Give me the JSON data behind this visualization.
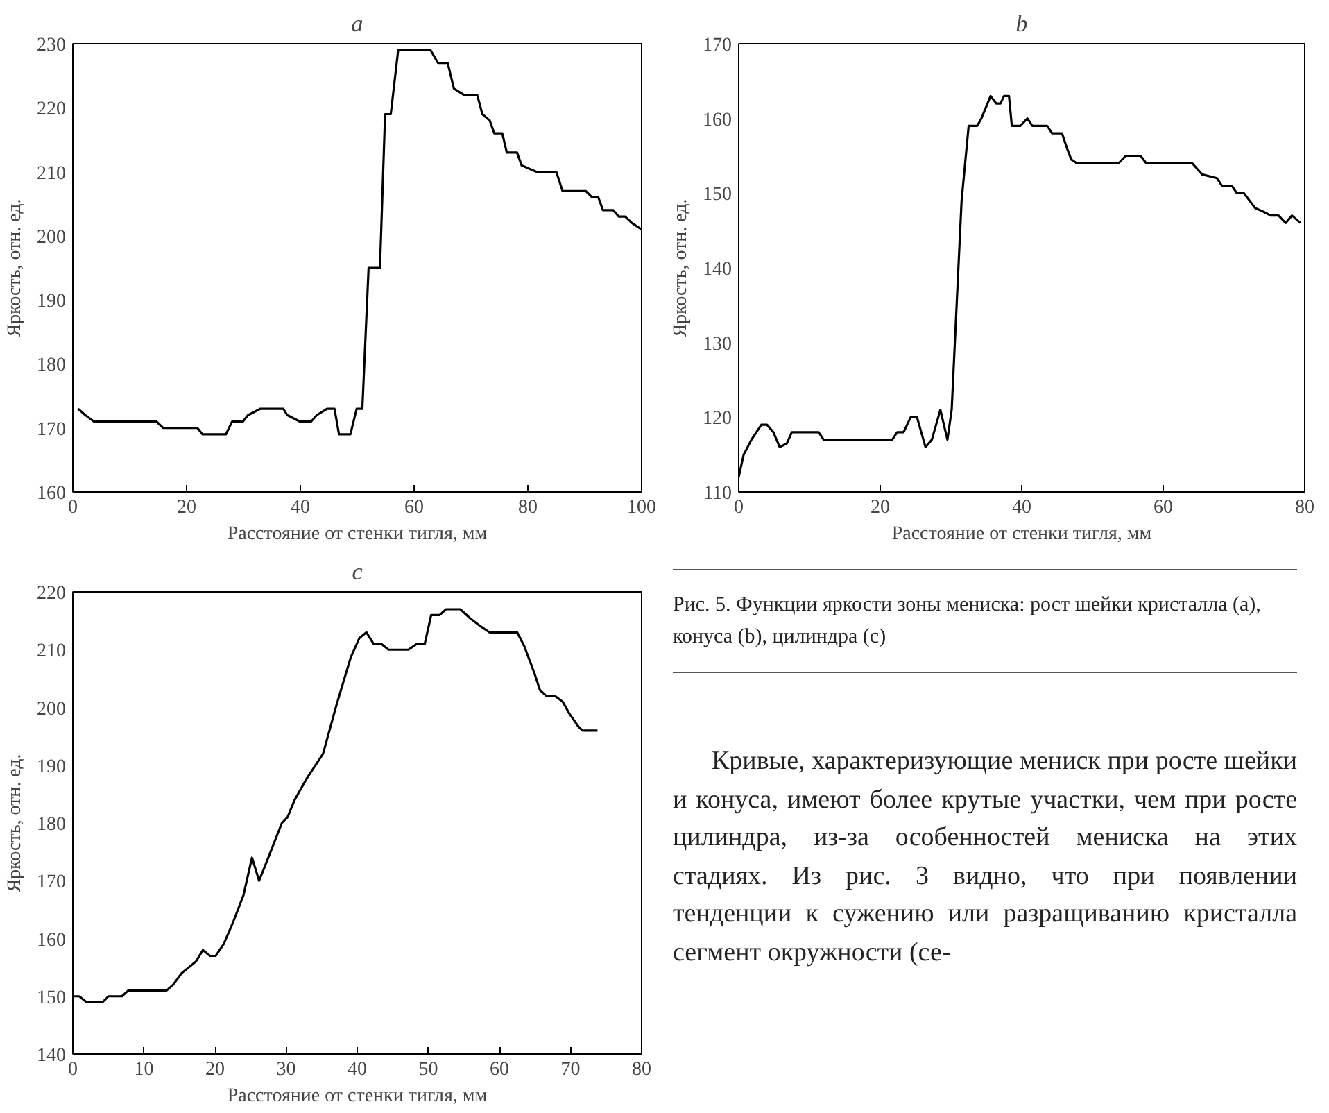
{
  "chart_data": [
    {
      "type": "line",
      "title": "a",
      "xlabel": "Расстояние от стенки тигля, мм",
      "ylabel": "Яркость, отн. ед.",
      "xlim": [
        0,
        100
      ],
      "ylim": [
        160,
        230
      ],
      "xticks": [
        0,
        20,
        40,
        60,
        80,
        100
      ],
      "yticks": [
        160,
        170,
        180,
        190,
        200,
        210,
        220,
        230
      ],
      "grid": false,
      "series": [
        {
          "color": "#000000",
          "x": [
            0.9,
            2.2,
            3.7,
            14.7,
            15.9,
            21.9,
            22.8,
            26.9,
            28,
            29.9,
            30.8,
            33,
            37,
            37.7,
            39.9,
            41.9,
            42.9,
            44.7,
            46,
            46.8,
            48.8,
            49.9,
            50.9,
            52,
            54,
            54.9,
            55.9,
            57.2,
            62.9,
            64.2,
            65.9,
            67,
            68.8,
            71.1,
            72,
            73.3,
            74.1,
            75.5,
            76.3,
            78.1,
            78.9,
            81.5,
            85,
            86.1,
            90.2,
            91.3,
            92.4,
            93.2,
            95,
            96,
            97.1,
            98.3,
            100
          ],
          "values": [
            173,
            172,
            171,
            171,
            170,
            170,
            169,
            169,
            171,
            171,
            172,
            173,
            173,
            172,
            171,
            171,
            172,
            173,
            173,
            169,
            169,
            173,
            173,
            195,
            195,
            219,
            219,
            229,
            229,
            227,
            227,
            223,
            222,
            222,
            219,
            218,
            216,
            216,
            213,
            213,
            211,
            210,
            210,
            207,
            207,
            206,
            206,
            204,
            204,
            203,
            203,
            202,
            201
          ]
        }
      ]
    },
    {
      "type": "line",
      "title": "b",
      "xlabel": "Расстояние от стенки тигля, мм",
      "ylabel": "Яркость, отн. ед.",
      "xlim": [
        0,
        80
      ],
      "ylim": [
        110,
        170
      ],
      "xticks": [
        0,
        20,
        40,
        60,
        80
      ],
      "yticks": [
        110,
        120,
        130,
        140,
        150,
        160,
        170
      ],
      "grid": false,
      "series": [
        {
          "color": "#000000",
          "x": [
            0,
            0.7,
            1.8,
            3.2,
            4,
            4.9,
            5.8,
            6.8,
            7.5,
            11.3,
            12,
            21.7,
            22.4,
            23.3,
            24.3,
            25.2,
            26.4,
            27.3,
            28.5,
            29.5,
            30.1,
            31.5,
            32.5,
            33.7,
            34.3,
            35.6,
            36.4,
            37,
            37.5,
            38.2,
            38.6,
            39.8,
            40.8,
            41.5,
            43.6,
            44.3,
            45.7,
            46.4,
            47,
            47.8,
            53.7,
            54.7,
            56.8,
            57.6,
            64.1,
            65.5,
            67.6,
            68.3,
            69.7,
            70.4,
            71.4,
            73,
            74.2,
            75.2,
            76.3,
            77.3,
            78.2,
            79.4
          ],
          "values": [
            112,
            115,
            117,
            119,
            119,
            118,
            116,
            116.5,
            118,
            118,
            117,
            117,
            118,
            118,
            120,
            120,
            116,
            117,
            121,
            117,
            121,
            149,
            159,
            159,
            160,
            163,
            162,
            162,
            163,
            163,
            159,
            159,
            160,
            159,
            159,
            158,
            158,
            156,
            154.5,
            154,
            154,
            155,
            155,
            154,
            154,
            152.5,
            152,
            151,
            151,
            150,
            150,
            148,
            147.5,
            147,
            147,
            146,
            147,
            146
          ]
        }
      ]
    },
    {
      "type": "line",
      "title": "c",
      "xlabel": "Расстояние от стенки тигля, мм",
      "ylabel": "Яркость, отн. ед.",
      "xlim": [
        0,
        80
      ],
      "ylim": [
        140,
        220
      ],
      "xticks": [
        0,
        10,
        20,
        30,
        40,
        50,
        60,
        70,
        80
      ],
      "yticks": [
        140,
        150,
        160,
        170,
        180,
        190,
        200,
        210,
        220
      ],
      "grid": false,
      "series": [
        {
          "color": "#000000",
          "x": [
            0,
            0.9,
            1.9,
            4.2,
            5,
            6.9,
            7.8,
            13.2,
            14.1,
            15.3,
            17.3,
            18.3,
            19.3,
            20.1,
            21.2,
            22.6,
            24,
            25.2,
            26.2,
            27.4,
            29.4,
            30.2,
            31.2,
            32.9,
            35.2,
            37.1,
            39.1,
            40.3,
            41.3,
            42.3,
            43.4,
            44.4,
            47.2,
            48.4,
            49.5,
            50.4,
            51.6,
            52.5,
            54.5,
            55.9,
            57.4,
            58.6,
            59.5,
            62.5,
            63.5,
            64.9,
            65.7,
            66.6,
            67.8,
            68.9,
            69.8,
            71.1,
            71.7,
            73.8
          ],
          "values": [
            150,
            150,
            149,
            149,
            150,
            150,
            151,
            151,
            152,
            154,
            156,
            158,
            157,
            157,
            159,
            163,
            167.5,
            174,
            170,
            173.7,
            180,
            181,
            184,
            187.7,
            192,
            200.5,
            208.7,
            212,
            213,
            211,
            211,
            210,
            210,
            211,
            211,
            216,
            216,
            217,
            217,
            215.4,
            214,
            213,
            213,
            213,
            210.6,
            206,
            203,
            202,
            202,
            201,
            199,
            196.7,
            196,
            196
          ]
        }
      ]
    },
    {
      "type": "other",
      "annotations": [
        "Рис. 5. Функции яркости зоны мениска: рост шейки кристалла (a),  конуса (b), цилиндра (c)",
        "Кривые, характеризующие мениск при росте шейки и конуса, имеют более крутые участки, чем при росте цилиндра, из-за особенностей мениска на этих стадиях. Из рис. 3 видно, что при появлении тенденции к сужению или разращиванию кристалла сегмент окружности (се-"
      ]
    }
  ]
}
